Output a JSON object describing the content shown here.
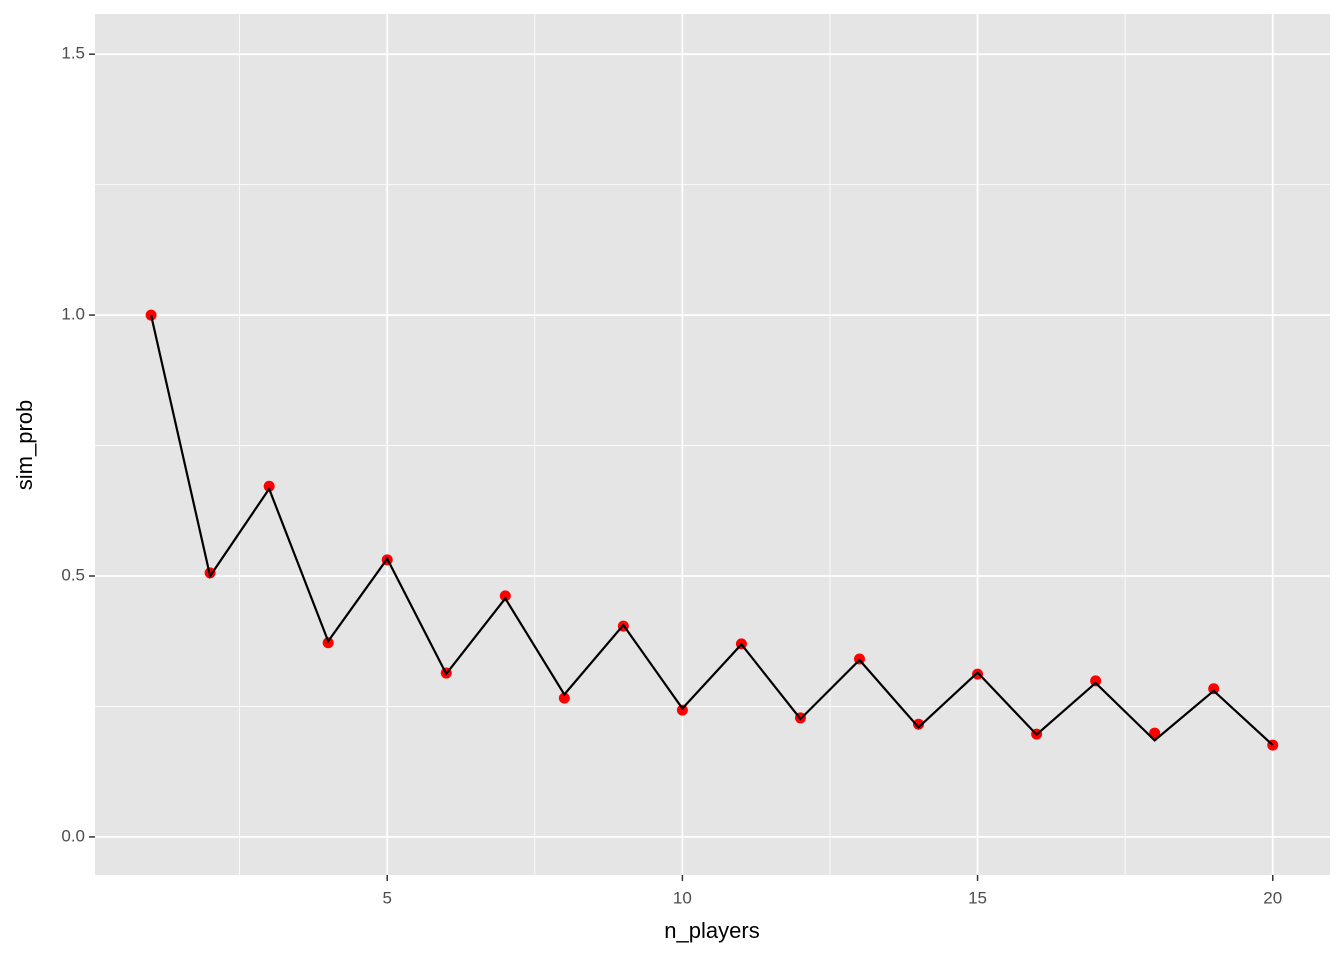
{
  "chart_data": {
    "type": "line",
    "x_label": "n_players",
    "y_label": "sim_prob",
    "x": [
      1,
      2,
      3,
      4,
      5,
      6,
      7,
      8,
      9,
      10,
      11,
      12,
      13,
      14,
      15,
      16,
      17,
      18,
      19,
      20
    ],
    "series": [
      {
        "color": "#ff0000",
        "style": "point",
        "values": [
          1.0,
          0.506,
          0.672,
          0.372,
          0.531,
          0.314,
          0.462,
          0.266,
          0.404,
          0.243,
          0.37,
          0.228,
          0.341,
          0.216,
          0.312,
          0.197,
          0.299,
          0.199,
          0.284,
          0.176
        ]
      },
      {
        "color": "#000000",
        "style": "line",
        "values": [
          1.0,
          0.5,
          0.667,
          0.375,
          0.533,
          0.3125,
          0.457,
          0.273,
          0.406,
          0.246,
          0.369,
          0.226,
          0.339,
          0.21,
          0.315,
          0.196,
          0.295,
          0.185,
          0.28,
          0.176
        ]
      }
    ],
    "xlim": [
      0.05,
      20.97
    ],
    "ylim": [
      -0.073,
      1.577
    ],
    "xticks": [
      5,
      10,
      15,
      20
    ],
    "yticks": [
      {
        "value": 0,
        "label": "0.0"
      },
      0.5,
      {
        "value": 1,
        "label": "1.0"
      },
      1.5
    ],
    "xminor": [
      2.5,
      7.5,
      12.5,
      17.5
    ],
    "yminor": [
      0.25,
      0.75,
      1.25
    ],
    "grid": true
  }
}
